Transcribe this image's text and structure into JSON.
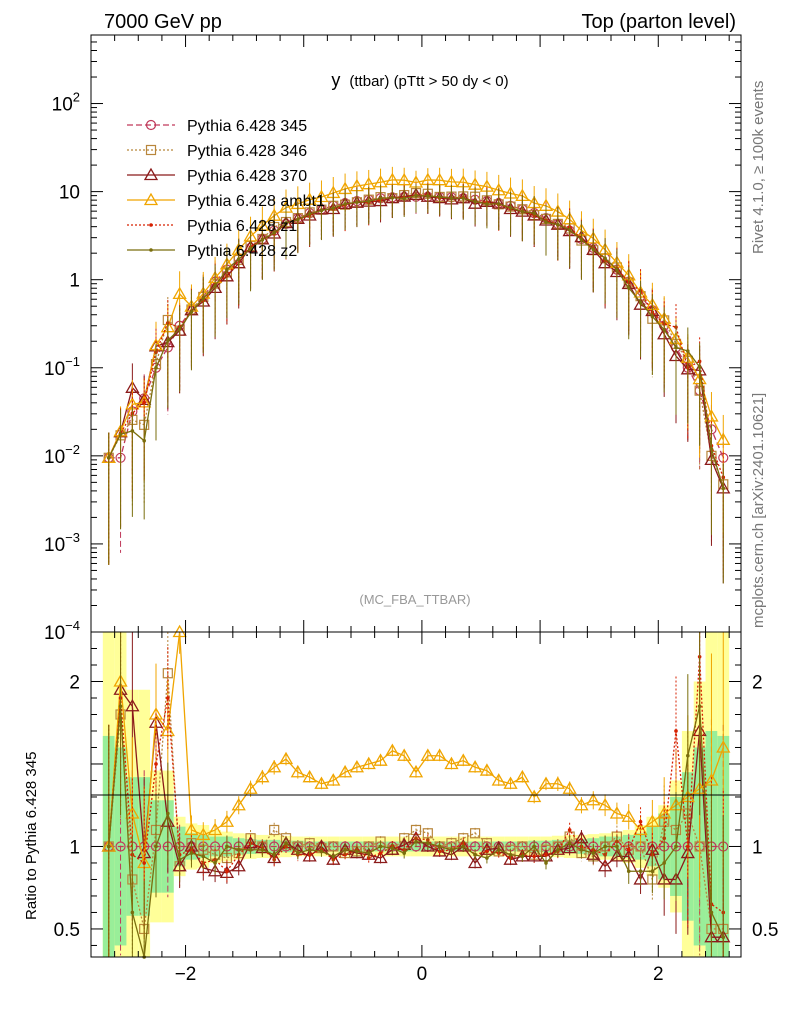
{
  "header": {
    "left": "7000 GeV pp",
    "right": "Top (parton level)"
  },
  "side_labels": {
    "rivet": "Rivet 4.1.0, ≥ 100k events",
    "mcplots": "mcplots.cern.ch [arXiv:2401.10621]"
  },
  "chart_data": {
    "type": "line",
    "title": "y (ttbar) (pTtt > 50 dy < 0)",
    "title_main": "y",
    "title_sub": "(ttbar) (pTtt > 50 dy < 0)",
    "watermark": "(MC_FBA_TTBAR)",
    "xlim": [
      -2.8,
      2.7
    ],
    "ylim_main": [
      0.0001,
      600
    ],
    "yscale_main": "log",
    "ylim_ratio": [
      0.33,
      2.3
    ],
    "ratio_ylabel": "Ratio to Pythia 6.428 345",
    "x_ticks": [
      {
        "v": -2,
        "label": "−2"
      },
      {
        "v": 0,
        "label": "0"
      },
      {
        "v": 2,
        "label": "2"
      }
    ],
    "y_ticks_main": [
      {
        "v": 100,
        "base": "10",
        "exp": "2"
      },
      {
        "v": 10,
        "base": "10",
        "exp": ""
      },
      {
        "v": 1,
        "base": "1",
        "exp": ""
      },
      {
        "v": 0.1,
        "base": "10",
        "exp": "−1"
      },
      {
        "v": 0.01,
        "base": "10",
        "exp": "−2"
      },
      {
        "v": 0.001,
        "base": "10",
        "exp": "−3"
      },
      {
        "v": 0.0001,
        "base": "10",
        "exp": "−4"
      }
    ],
    "y_ticks_ratio": [
      {
        "v": 2,
        "label": "2"
      },
      {
        "v": 1,
        "label": "1"
      },
      {
        "v": 0.5,
        "label": "0.5"
      }
    ],
    "x": [
      -2.65,
      -2.55,
      -2.45,
      -2.35,
      -2.25,
      -2.15,
      -2.05,
      -1.95,
      -1.85,
      -1.75,
      -1.65,
      -1.55,
      -1.45,
      -1.35,
      -1.25,
      -1.15,
      -1.05,
      -0.95,
      -0.85,
      -0.75,
      -0.65,
      -0.55,
      -0.45,
      -0.35,
      -0.25,
      -0.15,
      -0.05,
      0.05,
      0.15,
      0.25,
      0.35,
      0.45,
      0.55,
      0.65,
      0.75,
      0.85,
      0.95,
      1.05,
      1.15,
      1.25,
      1.35,
      1.45,
      1.55,
      1.65,
      1.75,
      1.85,
      1.95,
      2.05,
      2.15,
      2.25,
      2.35,
      2.45,
      2.55
    ],
    "reference_series": "Pythia 6.428 345",
    "reference_values": [
      0.0095,
      0.0095,
      0.032,
      0.045,
      0.1,
      0.17,
      0.3,
      0.45,
      0.65,
      0.95,
      1.3,
      1.75,
      2.3,
      2.9,
      3.6,
      4.3,
      5.0,
      5.7,
      6.3,
      6.9,
      7.4,
      7.8,
      8.1,
      8.4,
      8.6,
      8.7,
      8.75,
      8.75,
      8.7,
      8.6,
      8.4,
      8.1,
      7.8,
      7.4,
      6.9,
      6.3,
      5.7,
      5.0,
      4.3,
      3.6,
      2.9,
      2.3,
      1.75,
      1.3,
      0.95,
      0.65,
      0.45,
      0.3,
      0.17,
      0.1,
      0.055,
      0.02,
      0.0095
    ],
    "series": [
      {
        "name": "Pythia 6.428 345",
        "color": "#c0395a",
        "dash": "6,3",
        "marker": "circle",
        "ratio": [
          1,
          1,
          1,
          1,
          1,
          1,
          1,
          1,
          1,
          1,
          1,
          1,
          1,
          1,
          1,
          1,
          1,
          1,
          1,
          1,
          1,
          1,
          1,
          1,
          1,
          1,
          1,
          1,
          1,
          1,
          1,
          1,
          1,
          1,
          1,
          1,
          1,
          1,
          1,
          1,
          1,
          1,
          1,
          1,
          1,
          1,
          1,
          1,
          1,
          1,
          1,
          1,
          1
        ]
      },
      {
        "name": "Pythia 6.428 346",
        "color": "#b8863b",
        "dash": "2,2",
        "marker": "square",
        "ratio": [
          1,
          1.8,
          0.8,
          0.5,
          1.1,
          2.05,
          0.88,
          1.02,
          0.98,
          0.95,
          0.93,
          0.96,
          1.05,
          1.0,
          1.1,
          1.05,
          1.0,
          1.02,
          0.99,
          1.0,
          0.96,
          0.97,
          1.0,
          1.03,
          0.98,
          1.05,
          1.1,
          1.08,
          1.0,
          1.02,
          1.05,
          1.08,
          1.02,
          0.97,
          0.98,
          1.0,
          0.95,
          0.98,
          1.0,
          1.06,
          0.96,
          0.94,
          1.0,
          1.06,
          0.98,
          1.0,
          0.8,
          1.15,
          1.1,
          1.2,
          1.0,
          0.5,
          0.5
        ]
      },
      {
        "name": "Pythia 6.428 370",
        "color": "#8b1a1a",
        "dash": "",
        "marker": "triangle-open",
        "ratio": [
          1,
          1.95,
          1.85,
          0.96,
          1.75,
          1.15,
          0.88,
          1.0,
          0.87,
          0.85,
          0.84,
          0.88,
          1.02,
          0.99,
          0.93,
          1.02,
          0.98,
          0.94,
          1.0,
          0.92,
          0.98,
          0.96,
          0.95,
          0.93,
          0.98,
          1.01,
          1.05,
          1.0,
          0.97,
          0.95,
          1.0,
          0.9,
          0.98,
          0.99,
          0.92,
          0.94,
          0.94,
          0.94,
          0.98,
          0.99,
          1.05,
          0.95,
          0.88,
          0.94,
          0.94,
          0.8,
          0.98,
          0.8,
          0.8,
          0.96,
          1.7,
          0.45,
          0.45
        ]
      },
      {
        "name": "Pythia 6.428 ambt1",
        "color": "#f0a500",
        "dash": "",
        "marker": "triangle-open",
        "ratio": [
          1,
          2.0,
          1.2,
          0.9,
          1.8,
          1.7,
          2.3,
          1.1,
          1.07,
          1.1,
          1.15,
          1.25,
          1.35,
          1.42,
          1.48,
          1.53,
          1.45,
          1.42,
          1.38,
          1.4,
          1.45,
          1.48,
          1.5,
          1.52,
          1.58,
          1.55,
          1.45,
          1.55,
          1.55,
          1.5,
          1.52,
          1.48,
          1.46,
          1.4,
          1.38,
          1.42,
          1.3,
          1.38,
          1.38,
          1.35,
          1.25,
          1.28,
          1.25,
          1.2,
          1.18,
          1.1,
          1.15,
          1.2,
          1.25,
          1.3,
          1.35,
          1.4,
          1.6
        ]
      },
      {
        "name": "Pythia 6.428 z1",
        "color": "#d62000",
        "dash": "2,2",
        "marker": "dot",
        "ratio": [
          1,
          1.9,
          0.95,
          0.9,
          1.5,
          1.9,
          0.95,
          0.98,
          0.9,
          0.92,
          0.85,
          0.95,
          1.02,
          0.99,
          0.92,
          1.0,
          0.95,
          0.95,
          0.98,
          0.92,
          0.95,
          0.98,
          0.93,
          0.96,
          1.0,
          0.98,
          1.05,
          1.04,
          0.97,
          0.98,
          1.02,
          0.95,
          0.97,
          0.96,
          0.93,
          0.95,
          0.94,
          0.95,
          0.97,
          1.1,
          1.0,
          0.98,
          0.95,
          1.03,
          0.98,
          1.15,
          0.95,
          1.05,
          1.7,
          1.0,
          2.15,
          0.65,
          0.6
        ]
      },
      {
        "name": "Pythia 6.428 z2",
        "color": "#7a6e0d",
        "dash": "",
        "marker": "dot",
        "ratio": [
          1,
          1.85,
          0.6,
          0.33,
          1.0,
          1.2,
          0.92,
          0.96,
          0.94,
          0.9,
          1.0,
          0.98,
          0.98,
          0.98,
          0.95,
          1.02,
          0.96,
          0.98,
          0.97,
          0.94,
          0.98,
          0.97,
          0.96,
          1.0,
          0.99,
          0.96,
          1.03,
          1.02,
          1.0,
          0.98,
          1.0,
          0.95,
          0.93,
          0.98,
          0.95,
          0.94,
          1.0,
          0.9,
          0.98,
          1.02,
          0.98,
          0.96,
          1.0,
          1.0,
          0.85,
          0.85,
          0.85,
          0.9,
          1.0,
          1.55,
          1.85,
          0.6,
          0.45
        ]
      }
    ],
    "bands": {
      "green_halfwidth": [
        0.67,
        0.6,
        0.42,
        0.42,
        0.28,
        0.28,
        0.12,
        0.08,
        0.07,
        0.06,
        0.06,
        0.05,
        0.045,
        0.04,
        0.04,
        0.035,
        0.035,
        0.03,
        0.03,
        0.03,
        0.03,
        0.03,
        0.03,
        0.03,
        0.03,
        0.03,
        0.03,
        0.03,
        0.03,
        0.03,
        0.03,
        0.03,
        0.03,
        0.03,
        0.03,
        0.03,
        0.035,
        0.035,
        0.04,
        0.04,
        0.045,
        0.05,
        0.06,
        0.06,
        0.07,
        0.08,
        0.12,
        0.2,
        0.3,
        0.45,
        0.6,
        0.7,
        0.67
      ],
      "yellow_halfwidth": [
        1.4,
        1.3,
        0.95,
        0.95,
        0.46,
        0.46,
        0.18,
        0.14,
        0.13,
        0.1,
        0.09,
        0.08,
        0.075,
        0.07,
        0.07,
        0.065,
        0.06,
        0.06,
        0.06,
        0.06,
        0.06,
        0.06,
        0.06,
        0.06,
        0.06,
        0.06,
        0.06,
        0.06,
        0.06,
        0.06,
        0.06,
        0.06,
        0.06,
        0.06,
        0.06,
        0.06,
        0.06,
        0.06,
        0.065,
        0.07,
        0.07,
        0.075,
        0.08,
        0.09,
        0.1,
        0.13,
        0.18,
        0.25,
        0.4,
        0.7,
        1.0,
        1.3,
        1.4
      ]
    }
  }
}
